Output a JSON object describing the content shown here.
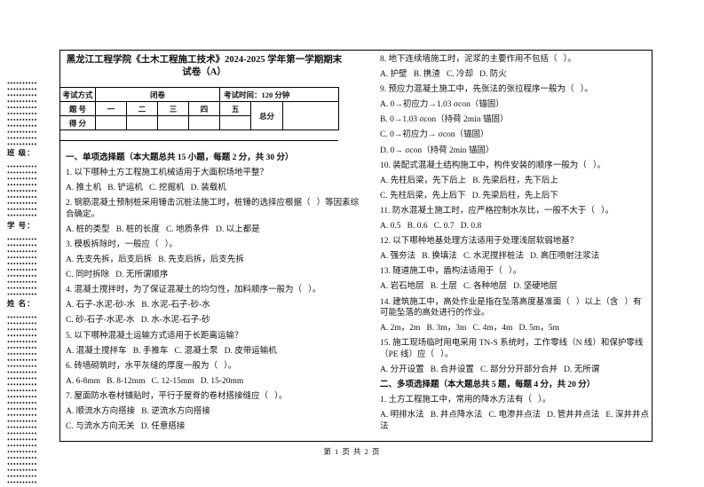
{
  "page": {
    "title_line1": "黑龙江工程学院《土木工程施工技术》2024-2025 学年第一学期期末",
    "title_line2": "试卷（A）",
    "footer": "第 1 页 共 2 页"
  },
  "margin": {
    "class_label": "班 级：",
    "student_id_label": "学 号：",
    "name_label": "姓 名："
  },
  "info_table": {
    "exam_mode_label": "考试方式",
    "exam_mode_value": "闭卷",
    "exam_time": "考试时间：120 分钟",
    "question_no_label": "题 号",
    "columns": [
      "一",
      "二",
      "三",
      "四",
      "五"
    ],
    "total_label": "总分",
    "score_label": "得 分"
  },
  "left_column": {
    "lines": [
      {
        "t": "一、单项选择题（本大题总共 15 小题，每题 2 分，共 30 分）",
        "b": true
      },
      {
        "t": "1. 以下哪种土方工程施工机械适用于大面积场地平整？"
      },
      {
        "t": "A. 推土机   B. 铲运机   C. 挖掘机   D. 装载机"
      },
      {
        "t": "2. 钢筋混凝土预制桩采用锤击沉桩法施工时，桩锤的选择应根据（   ）等因素综合确定。"
      },
      {
        "t": "A. 桩的类型   B. 桩的长度   C. 地质条件   D. 以上都是"
      },
      {
        "t": "3. 模板拆除时，一般应（   ）。"
      },
      {
        "t": "A. 先支先拆，后支后拆   B. 先支后拆，后支先拆"
      },
      {
        "t": "C. 同时拆除   D. 无所谓顺序"
      },
      {
        "t": "4. 混凝土搅拌时，为了保证混凝土的均匀性，加料顺序一般为（   ）。"
      },
      {
        "t": "A. 石子-水泥-砂-水   B. 水泥-石子-砂-水"
      },
      {
        "t": "C. 砂-石子-水泥-水   D. 水-水泥-石子-砂"
      },
      {
        "t": "5. 以下哪种混凝土运输方式适用于长距离运输？"
      },
      {
        "t": "A. 混凝土搅拌车   B. 手推车   C. 混凝土泵   D. 皮带运输机"
      },
      {
        "t": "6. 砖墙砌筑时，水平灰缝的厚度一般为（   ）。"
      },
      {
        "t": "A. 6-8mm   B. 8-12mm   C. 12-15mm   D. 15-20mm"
      },
      {
        "t": "7. 屋面防水卷材铺贴时，平行于屋脊的卷材搭接缝应（   ）。"
      },
      {
        "t": "A. 顺流水方向搭接   B. 逆流水方向搭接"
      },
      {
        "t": "C. 与流水方向无关   D. 任意搭接"
      }
    ]
  },
  "right_column": {
    "lines": [
      {
        "t": "8. 地下连续墙施工时，泥浆的主要作用不包括（   ）。"
      },
      {
        "t": "A. 护壁   B. 携渣   C. 冷却   D. 防火"
      },
      {
        "t": "9. 预应力混凝土施工中，先张法的张拉程序一般为（   ）。"
      },
      {
        "t": "A. 0→初应力→1.03 σcon（锚固）"
      },
      {
        "t": "B. 0→1.03 σcon（持荷 2min 锚固）"
      },
      {
        "t": "C. 0→初应力→ σcon（锚固）"
      },
      {
        "t": "D. 0→ σcon（持荷 2min 锚固）"
      },
      {
        "t": "10. 装配式混凝土结构施工中，构件安装的顺序一般为（   ）。"
      },
      {
        "t": "A. 先柱后梁，先下后上   B. 先梁后柱，先下后上"
      },
      {
        "t": "C. 先柱后梁，先上后下   D. 先梁后柱，先上后下"
      },
      {
        "t": "11. 防水混凝土施工时，应严格控制水灰比，一般不大于（   ）。"
      },
      {
        "t": "A. 0.5   B. 0.6   C. 0.7   D. 0.8"
      },
      {
        "t": "12. 以下哪种地基处理方法适用于处理浅层软弱地基？"
      },
      {
        "t": "A. 强夯法   B. 换填法   C. 水泥搅拌桩法   D. 高压喷射注浆法"
      },
      {
        "t": "13. 隧道施工中，盾构法适用于（   ）。"
      },
      {
        "t": "A. 岩石地层   B. 土层   C. 各种地层   D. 坚硬地层"
      },
      {
        "t": "14. 建筑施工中，高处作业是指在坠落高度基准面（   ）以上（含   ）有可能坠落的高处进行的作业。"
      },
      {
        "t": "A. 2m，2m   B. 3m，3m   C. 4m，4m   D. 5m，5m"
      },
      {
        "t": "15. 施工现场临时用电采用 TN-S 系统时，工作零线（N 线）和保护零线（PE 线）应（   ）。"
      },
      {
        "t": "A. 分开设置   B. 合并设置   C. 部分分开部分合并   D. 无所谓"
      },
      {
        "t": "二、多项选择题（本大题总共 5 题，每题 4 分，共 20 分）",
        "b": true
      },
      {
        "t": "1. 土方工程施工中，常用的降水方法有（   ）。"
      },
      {
        "t": "A. 明排水法   B. 井点降水法   C. 电渗井点法   D. 管井井点法   E. 深井井点法"
      }
    ]
  }
}
